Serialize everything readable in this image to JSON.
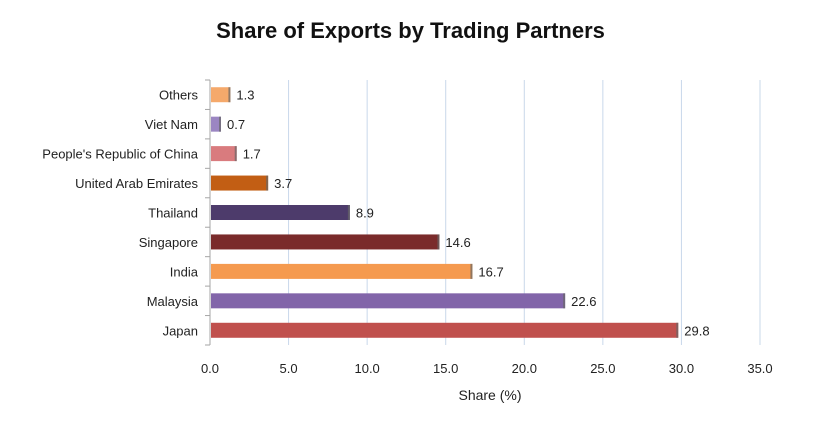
{
  "chart_data": {
    "type": "bar",
    "orientation": "horizontal",
    "title": "Share of Exports by Trading Partners",
    "xlabel": "Share (%)",
    "ylabel": "",
    "xlim": [
      0,
      35
    ],
    "x_ticks": [
      "0.0",
      "5.0",
      "10.0",
      "15.0",
      "20.0",
      "25.0",
      "30.0",
      "35.0"
    ],
    "grid": "vertical",
    "legend": "none",
    "categories": [
      "Others",
      "Viet Nam",
      "People's Republic of China",
      "United Arab Emirates",
      "Thailand",
      "Singapore",
      "India",
      "Malaysia",
      "Japan"
    ],
    "values": [
      1.3,
      0.7,
      1.7,
      3.7,
      8.9,
      14.6,
      16.7,
      22.6,
      29.8
    ],
    "value_labels": [
      "1.3",
      "0.7",
      "1.7",
      "3.7",
      "8.9",
      "14.6",
      "16.7",
      "22.6",
      "29.8"
    ],
    "colors": [
      "#f5a96b",
      "#9b86c2",
      "#d97b7e",
      "#c25e14",
      "#4d3b6b",
      "#7a2b2b",
      "#f59a4f",
      "#8265a9",
      "#c0504d"
    ],
    "grid_color": "#c9d8ea",
    "axis_color": "#a6a6a6"
  }
}
